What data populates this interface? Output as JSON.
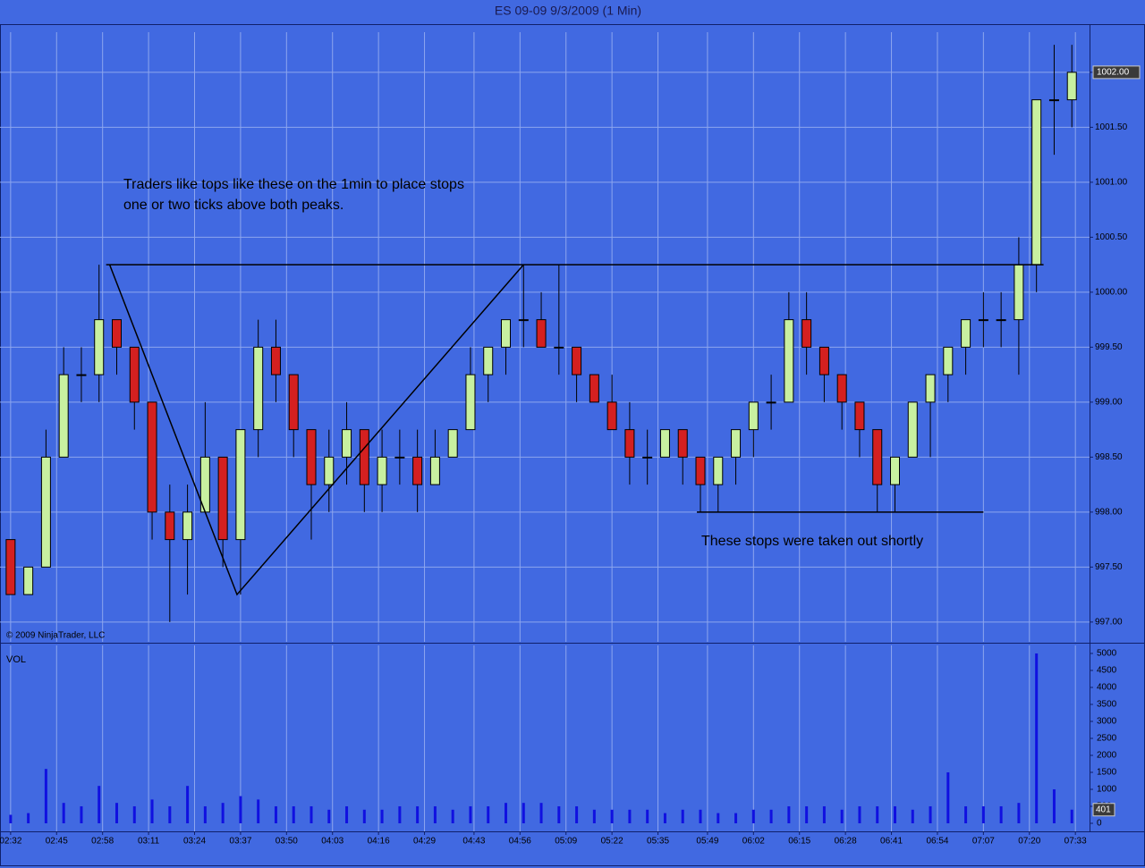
{
  "chart_data": [
    {
      "type": "candlestick",
      "title": "ES 09-09  9/3/2009 (1 Min)",
      "copyright": "© 2009 NinjaTrader, LLC",
      "x": [
        "02:32",
        "02:37",
        "02:42",
        "02:47",
        "02:52",
        "02:57",
        "03:02",
        "03:07",
        "03:12",
        "03:17",
        "03:22",
        "03:27",
        "03:32",
        "03:37",
        "03:42",
        "03:47",
        "03:52",
        "03:57",
        "04:02",
        "04:07",
        "04:12",
        "04:17",
        "04:22",
        "04:27",
        "04:32",
        "04:37",
        "04:42",
        "04:47",
        "04:52",
        "04:57",
        "05:02",
        "05:07",
        "05:12",
        "05:17",
        "05:22",
        "05:27",
        "05:32",
        "05:37",
        "05:42",
        "05:47",
        "05:52",
        "05:57",
        "06:02",
        "06:07",
        "06:12",
        "06:17",
        "06:22",
        "06:27",
        "06:32",
        "06:37",
        "06:42",
        "06:47",
        "06:52",
        "06:57",
        "07:02",
        "07:07",
        "07:12",
        "07:17",
        "07:22",
        "07:27",
        "07:32"
      ],
      "open": [
        997.75,
        997.25,
        997.5,
        998.5,
        999.25,
        999.25,
        999.75,
        999.5,
        999.0,
        998.0,
        997.75,
        998.0,
        998.5,
        997.75,
        998.75,
        999.5,
        999.25,
        998.75,
        998.25,
        998.5,
        998.75,
        998.25,
        998.5,
        998.5,
        998.25,
        998.5,
        998.75,
        999.25,
        999.5,
        999.75,
        999.75,
        999.5,
        999.5,
        999.25,
        999.0,
        998.75,
        998.5,
        998.5,
        998.75,
        998.5,
        998.25,
        998.5,
        998.75,
        999.0,
        999.0,
        999.75,
        999.5,
        999.25,
        999.0,
        998.75,
        998.25,
        998.5,
        999.0,
        999.25,
        999.5,
        999.75,
        999.75,
        999.75,
        1000.25,
        1001.75,
        1001.75
      ],
      "high": [
        997.75,
        997.5,
        998.75,
        999.5,
        999.5,
        1000.25,
        999.75,
        999.5,
        999.0,
        998.25,
        998.25,
        999.0,
        998.5,
        998.75,
        999.75,
        999.75,
        999.25,
        998.75,
        998.75,
        999.0,
        998.75,
        998.75,
        998.75,
        998.75,
        998.75,
        998.75,
        999.5,
        999.5,
        999.75,
        1000.25,
        1000.0,
        1000.25,
        999.5,
        999.25,
        999.25,
        999.0,
        998.75,
        998.75,
        998.75,
        998.5,
        998.5,
        998.75,
        999.0,
        999.25,
        1000.0,
        1000.0,
        999.5,
        999.25,
        999.0,
        998.75,
        998.5,
        999.0,
        999.25,
        999.5,
        999.75,
        1000.0,
        1000.0,
        1000.5,
        1001.75,
        1002.25,
        1002.25
      ],
      "low": [
        997.25,
        997.25,
        997.5,
        998.5,
        999.0,
        999.0,
        999.25,
        998.75,
        997.75,
        997.0,
        997.25,
        998.0,
        997.5,
        997.25,
        998.5,
        999.0,
        998.5,
        997.75,
        998.0,
        998.25,
        998.0,
        998.0,
        998.25,
        998.0,
        998.25,
        998.5,
        998.75,
        999.0,
        999.25,
        999.5,
        999.5,
        999.25,
        999.0,
        999.0,
        998.75,
        998.25,
        998.25,
        998.5,
        998.25,
        998.0,
        998.0,
        998.25,
        998.5,
        998.75,
        999.0,
        999.25,
        999.0,
        998.75,
        998.5,
        998.0,
        998.0,
        998.5,
        998.5,
        999.0,
        999.25,
        999.5,
        999.5,
        999.25,
        1000.0,
        1001.25,
        1001.5
      ],
      "close": [
        997.25,
        997.5,
        998.5,
        999.25,
        999.25,
        999.75,
        999.5,
        999.0,
        998.0,
        997.75,
        998.0,
        998.5,
        997.75,
        998.75,
        999.5,
        999.25,
        998.75,
        998.25,
        998.5,
        998.75,
        998.25,
        998.5,
        998.5,
        998.25,
        998.5,
        998.75,
        999.25,
        999.5,
        999.75,
        999.75,
        999.5,
        999.5,
        999.25,
        999.0,
        998.75,
        998.5,
        998.5,
        998.75,
        998.5,
        998.25,
        998.5,
        998.75,
        999.0,
        999.0,
        999.75,
        999.5,
        999.25,
        999.0,
        998.75,
        998.25,
        998.5,
        999.0,
        999.25,
        999.5,
        999.75,
        999.75,
        999.75,
        1000.25,
        1001.75,
        1001.75,
        1002.0
      ],
      "last_label": "1002.00",
      "up_color": "#c8f0a0",
      "down_color": "#d42020",
      "xlim": [
        "02:29",
        "07:37"
      ],
      "xticks": [
        "02:32",
        "02:45",
        "02:58",
        "03:11",
        "03:24",
        "03:37",
        "03:50",
        "04:03",
        "04:16",
        "04:29",
        "04:43",
        "04:56",
        "05:09",
        "05:22",
        "05:35",
        "05:49",
        "06:02",
        "06:15",
        "06:28",
        "06:41",
        "06:54",
        "07:07",
        "07:20",
        "07:33"
      ],
      "ylim": [
        996.82,
        1002.43
      ],
      "yticks": [
        {
          "value": 997,
          "label": "997.00"
        },
        {
          "value": 997.5,
          "label": "997.50"
        },
        {
          "value": 998,
          "label": "998.00"
        },
        {
          "value": 998.5,
          "label": "998.50"
        },
        {
          "value": 999,
          "label": "999.00"
        },
        {
          "value": 999.5,
          "label": "999.50"
        },
        {
          "value": 1000,
          "label": "1000.00"
        },
        {
          "value": 1000.5,
          "label": "1000.50"
        },
        {
          "value": 1001,
          "label": "1001.00"
        },
        {
          "value": 1001.5,
          "label": "1001.50"
        },
        {
          "value": 1002,
          "label": "1002.00"
        }
      ],
      "grid": true,
      "lines": [
        {
          "x": [
            "02:59",
            "07:24"
          ],
          "y": [
            1000.25,
            1000.25
          ]
        },
        {
          "x": [
            "05:46",
            "07:07"
          ],
          "y": [
            998.0,
            998.0
          ]
        },
        {
          "x": [
            "03:00",
            "03:36",
            "04:57"
          ],
          "y": [
            1000.25,
            997.25,
            1000.25
          ]
        }
      ],
      "annotations": [
        "Traders like tops like these on the 1min to place stops",
        "one or two ticks above both peaks.",
        "These stops were taken out shortly"
      ]
    },
    {
      "type": "bar",
      "label": "VOL",
      "color": "#1010e0",
      "x": [
        "02:32",
        "02:37",
        "02:42",
        "02:47",
        "02:52",
        "02:57",
        "03:02",
        "03:07",
        "03:12",
        "03:17",
        "03:22",
        "03:27",
        "03:32",
        "03:37",
        "03:42",
        "03:47",
        "03:52",
        "03:57",
        "04:02",
        "04:07",
        "04:12",
        "04:17",
        "04:22",
        "04:27",
        "04:32",
        "04:37",
        "04:42",
        "04:47",
        "04:52",
        "04:57",
        "05:02",
        "05:07",
        "05:12",
        "05:17",
        "05:22",
        "05:27",
        "05:32",
        "05:37",
        "05:42",
        "05:47",
        "05:52",
        "05:57",
        "06:02",
        "06:07",
        "06:12",
        "06:17",
        "06:22",
        "06:27",
        "06:32",
        "06:37",
        "06:42",
        "06:47",
        "06:52",
        "06:57",
        "07:02",
        "07:07",
        "07:12",
        "07:17",
        "07:22",
        "07:27",
        "07:32"
      ],
      "values": [
        250,
        300,
        1600,
        600,
        500,
        1100,
        600,
        500,
        700,
        500,
        1100,
        500,
        600,
        800,
        700,
        500,
        500,
        500,
        400,
        500,
        400,
        400,
        500,
        500,
        500,
        400,
        500,
        500,
        600,
        600,
        600,
        500,
        500,
        400,
        400,
        400,
        400,
        300,
        400,
        400,
        300,
        300,
        400,
        400,
        500,
        500,
        500,
        400,
        500,
        500,
        500,
        400,
        500,
        1500,
        500,
        500,
        500,
        600,
        5000,
        1000,
        401
      ],
      "ylim": [
        -237,
        5289
      ],
      "yticks": [
        0,
        500,
        1000,
        1500,
        2000,
        2500,
        3000,
        3500,
        4000,
        4500,
        5000
      ]
    }
  ]
}
